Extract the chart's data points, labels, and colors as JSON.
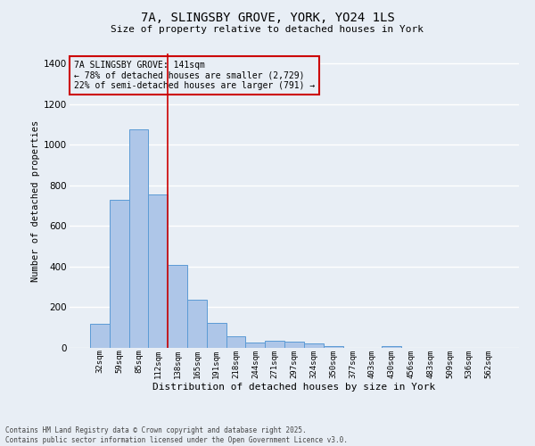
{
  "title_line1": "7A, SLINGSBY GROVE, YORK, YO24 1LS",
  "title_line2": "Size of property relative to detached houses in York",
  "xlabel": "Distribution of detached houses by size in York",
  "ylabel": "Number of detached properties",
  "categories": [
    "32sqm",
    "59sqm",
    "85sqm",
    "112sqm",
    "138sqm",
    "165sqm",
    "191sqm",
    "218sqm",
    "244sqm",
    "271sqm",
    "297sqm",
    "324sqm",
    "350sqm",
    "377sqm",
    "403sqm",
    "430sqm",
    "456sqm",
    "483sqm",
    "509sqm",
    "536sqm",
    "562sqm"
  ],
  "values": [
    120,
    730,
    1075,
    755,
    410,
    237,
    125,
    55,
    28,
    33,
    30,
    22,
    10,
    0,
    0,
    8,
    0,
    0,
    0,
    0,
    0
  ],
  "bar_color": "#aec6e8",
  "bar_edge_color": "#5b9bd5",
  "vline_color": "#cc0000",
  "annotation_text": "7A SLINGSBY GROVE: 141sqm\n← 78% of detached houses are smaller (2,729)\n22% of semi-detached houses are larger (791) →",
  "annotation_box_color": "#cc0000",
  "ylim": [
    0,
    1450
  ],
  "yticks": [
    0,
    200,
    400,
    600,
    800,
    1000,
    1200,
    1400
  ],
  "background_color": "#e8eef5",
  "grid_color": "#ffffff",
  "footer_line1": "Contains HM Land Registry data © Crown copyright and database right 2025.",
  "footer_line2": "Contains public sector information licensed under the Open Government Licence v3.0."
}
